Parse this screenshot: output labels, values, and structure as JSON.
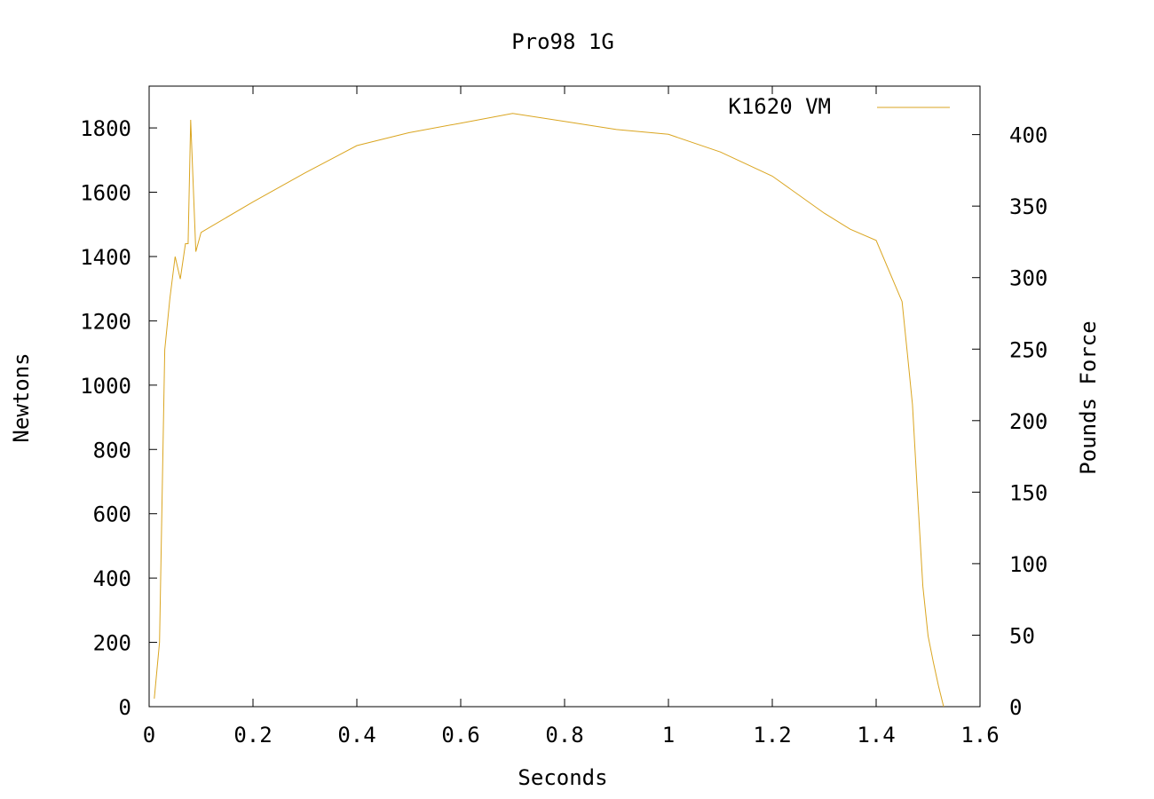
{
  "chart_data": {
    "type": "line",
    "title": "Pro98 1G",
    "xlabel": "Seconds",
    "ylabel": "Newtons",
    "y2label": "Pounds Force",
    "xlim": [
      0,
      1.6
    ],
    "ylim": [
      0,
      1930
    ],
    "y2lim": [
      0,
      433.9
    ],
    "x_ticks": [
      "0",
      "0.2",
      "0.4",
      "0.6",
      "0.8",
      "1",
      "1.2",
      "1.4",
      "1.6"
    ],
    "x_tick_values": [
      0,
      0.2,
      0.4,
      0.6,
      0.8,
      1.0,
      1.2,
      1.4,
      1.6
    ],
    "y_ticks": [
      "0",
      "200",
      "400",
      "600",
      "800",
      "1000",
      "1200",
      "1400",
      "1600",
      "1800"
    ],
    "y_tick_values": [
      0,
      200,
      400,
      600,
      800,
      1000,
      1200,
      1400,
      1600,
      1800
    ],
    "y2_ticks": [
      "0",
      "50",
      "100",
      "150",
      "200",
      "250",
      "300",
      "350",
      "400"
    ],
    "y2_tick_values": [
      0,
      50,
      100,
      150,
      200,
      250,
      300,
      350,
      400
    ],
    "grid": false,
    "legend_position": "top-right",
    "series": [
      {
        "name": "K1620 VM",
        "color": "#DAA520",
        "x": [
          0.01,
          0.02,
          0.03,
          0.04,
          0.05,
          0.06,
          0.07,
          0.075,
          0.08,
          0.09,
          0.1,
          0.2,
          0.3,
          0.4,
          0.5,
          0.6,
          0.7,
          0.8,
          0.9,
          1.0,
          1.1,
          1.2,
          1.3,
          1.35,
          1.4,
          1.45,
          1.46,
          1.47,
          1.48,
          1.49,
          1.5,
          1.51,
          1.52,
          1.53
        ],
        "y": [
          25,
          200,
          1110,
          1270,
          1400,
          1330,
          1440,
          1440,
          1825,
          1415,
          1475,
          1570,
          1660,
          1745,
          1785,
          1815,
          1845,
          1820,
          1795,
          1780,
          1725,
          1650,
          1535,
          1485,
          1450,
          1260,
          1100,
          940,
          650,
          375,
          220,
          140,
          65,
          0
        ]
      }
    ]
  }
}
